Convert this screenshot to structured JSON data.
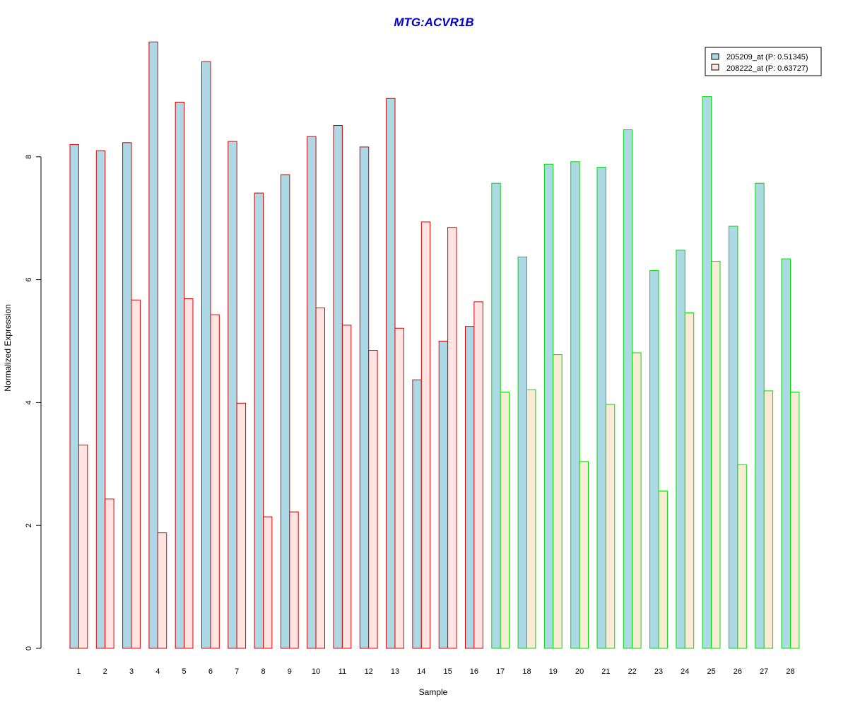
{
  "chart_data": {
    "type": "bar",
    "title": "MTG:ACVR1B",
    "xlabel": "Sample",
    "ylabel": "Normalized Expression",
    "categories": [
      "1",
      "2",
      "3",
      "4",
      "5",
      "6",
      "7",
      "8",
      "9",
      "10",
      "11",
      "12",
      "13",
      "14",
      "15",
      "16",
      "17",
      "18",
      "19",
      "20",
      "21",
      "22",
      "23",
      "24",
      "25",
      "26",
      "27",
      "28"
    ],
    "yticks": [
      "0",
      "2",
      "4",
      "6",
      "8"
    ],
    "ylim": [
      0,
      10
    ],
    "series": [
      {
        "name": "205209_at (P: 0.51345)",
        "fill": "#add8e6",
        "values": [
          8.2,
          8.1,
          8.23,
          9.87,
          8.89,
          9.55,
          8.25,
          7.41,
          7.71,
          8.33,
          8.51,
          8.16,
          8.95,
          4.37,
          5.0,
          5.24,
          7.57,
          6.37,
          7.88,
          7.92,
          7.83,
          8.44,
          6.15,
          6.48,
          8.98,
          6.87,
          7.57,
          6.34
        ]
      },
      {
        "name": "208222_at (P: 0.63727)",
        "fill_group1": "#ffe4e1",
        "fill_group2": "#faebd7",
        "values": [
          3.31,
          2.43,
          5.67,
          1.88,
          5.69,
          5.43,
          3.99,
          2.14,
          2.22,
          5.54,
          5.26,
          4.85,
          5.21,
          6.94,
          6.85,
          5.64,
          4.17,
          4.21,
          4.78,
          3.04,
          3.97,
          4.81,
          2.56,
          5.46,
          6.3,
          2.99,
          4.19,
          4.17
        ]
      }
    ],
    "group_border_colors": [
      "#dd0000",
      "#00dd00"
    ],
    "group_split_after_sample": 16,
    "legend_position": "top-right"
  }
}
